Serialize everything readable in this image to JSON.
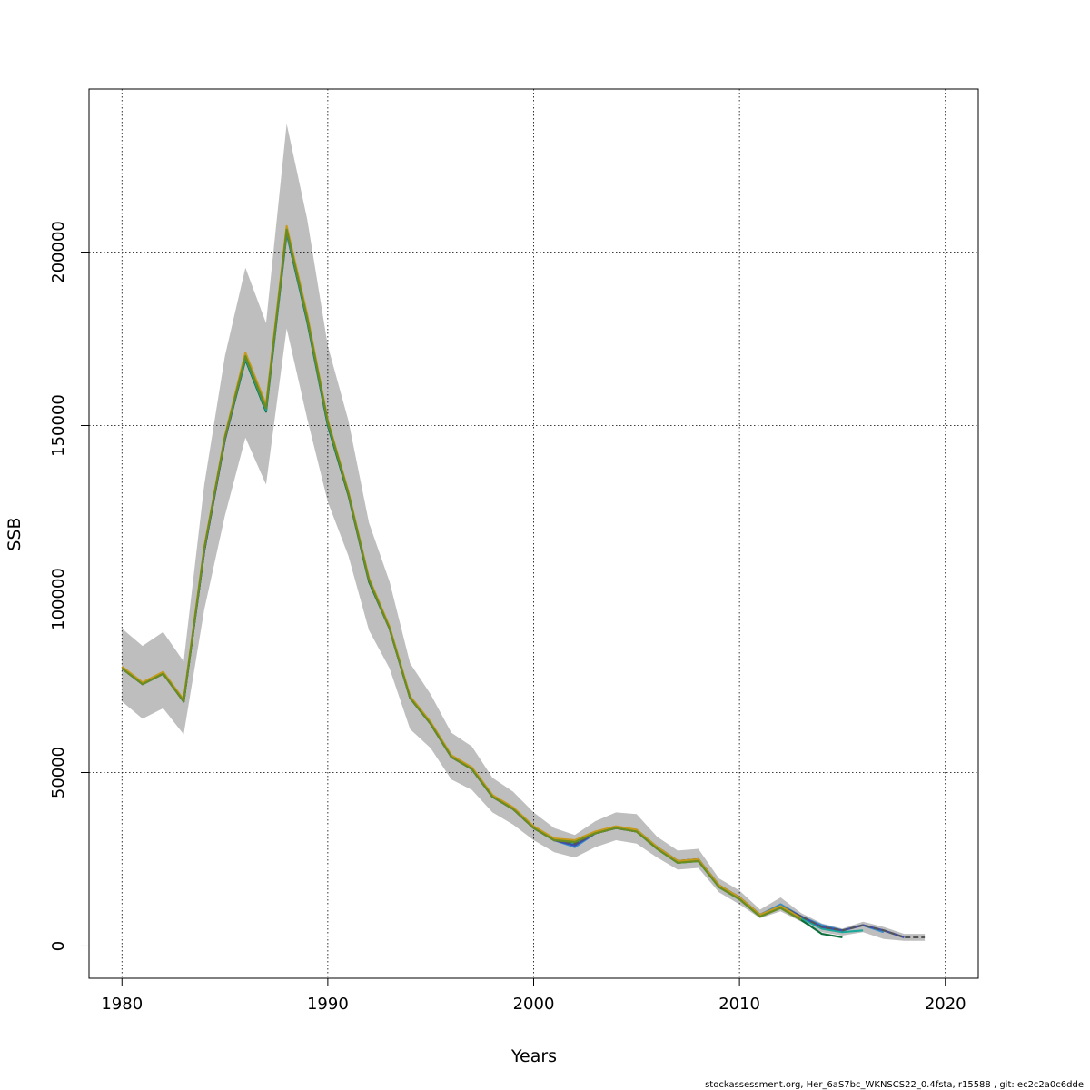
{
  "chart_data": {
    "type": "line",
    "xlabel": "Years",
    "ylabel": "SSB",
    "xlim": [
      1978.4,
      2021.6
    ],
    "ylim": [
      -9300,
      247000
    ],
    "x_ticks": [
      1980,
      1990,
      2000,
      2010,
      2020
    ],
    "x_tick_labels": [
      "1980",
      "1990",
      "2000",
      "2010",
      "2020"
    ],
    "y_ticks": [
      0,
      50000,
      100000,
      150000,
      200000
    ],
    "y_tick_labels": [
      "0",
      "50000",
      "100000",
      "150000",
      "200000"
    ],
    "grid": true,
    "confidence_band": {
      "color": "#bebebe",
      "x": [
        1980,
        1981,
        1982,
        1983,
        1984,
        1985,
        1986,
        1987,
        1988,
        1989,
        1990,
        1991,
        1992,
        1993,
        1994,
        1995,
        1996,
        1997,
        1998,
        1999,
        2000,
        2001,
        2002,
        2003,
        2004,
        2005,
        2006,
        2007,
        2008,
        2009,
        2010,
        2011,
        2012,
        2013,
        2014,
        2015,
        2016,
        2017,
        2018,
        2019
      ],
      "lower": [
        70500,
        65500,
        68500,
        61000,
        97000,
        124000,
        146500,
        133000,
        178000,
        152000,
        128000,
        112500,
        91000,
        80000,
        62500,
        57000,
        48000,
        45000,
        38500,
        35000,
        30500,
        27000,
        25500,
        28500,
        30500,
        29500,
        25500,
        22000,
        22500,
        15500,
        12000,
        8000,
        10000,
        7000,
        4000,
        3000,
        4000,
        2000,
        1500,
        1500
      ],
      "upper": [
        91500,
        86500,
        90500,
        82000,
        133000,
        170000,
        195500,
        179500,
        237000,
        209500,
        173000,
        151500,
        122000,
        105000,
        81500,
        72500,
        61500,
        57500,
        48500,
        44500,
        38500,
        34000,
        32000,
        36000,
        38500,
        38000,
        31500,
        27500,
        28000,
        19500,
        16000,
        10500,
        14000,
        9500,
        6500,
        5000,
        7000,
        5500,
        3500,
        3500
      ]
    },
    "series": [
      {
        "color": "#0b6e3c",
        "x": [
          1980,
          1981,
          1982,
          1983,
          1984,
          1985,
          1986,
          1987,
          1988,
          1989,
          1990,
          1991,
          1992,
          1993,
          1994,
          1995,
          1996,
          1997,
          1998,
          1999,
          2000,
          2001,
          2002,
          2003,
          2004,
          2005,
          2006,
          2007,
          2008,
          2009,
          2010,
          2011,
          2012,
          2013,
          2014,
          2015
        ],
        "values": [
          80000,
          75500,
          78500,
          70500,
          114000,
          146000,
          169000,
          154000,
          205500,
          180000,
          150000,
          130000,
          105000,
          91500,
          71500,
          64000,
          54500,
          51000,
          43000,
          39500,
          34000,
          30500,
          30000,
          32500,
          34000,
          33000,
          28000,
          24000,
          24500,
          17000,
          13500,
          8500,
          11000,
          7500,
          3500,
          2500
        ]
      },
      {
        "color": "#1aa89a",
        "x": [
          1980,
          1981,
          1982,
          1983,
          1984,
          1985,
          1986,
          1987,
          1988,
          1989,
          1990,
          1991,
          1992,
          1993,
          1994,
          1995,
          1996,
          1997,
          1998,
          1999,
          2000,
          2001,
          2002,
          2003,
          2004,
          2005,
          2006,
          2007,
          2008,
          2009,
          2010,
          2011,
          2012,
          2013,
          2014,
          2015,
          2016
        ],
        "values": [
          80000,
          75500,
          78500,
          70500,
          114000,
          146000,
          169500,
          154500,
          206000,
          180500,
          150500,
          130500,
          105500,
          91500,
          71500,
          64000,
          54500,
          51000,
          43000,
          39500,
          34000,
          30500,
          29500,
          32500,
          34000,
          33000,
          28000,
          24000,
          24500,
          17000,
          13500,
          8500,
          11500,
          8000,
          5000,
          4000,
          4500
        ]
      },
      {
        "color": "#3a8ec9",
        "x": [
          1980,
          1981,
          1982,
          1983,
          1984,
          1985,
          1986,
          1987,
          1988,
          1989,
          1990,
          1991,
          1992,
          1993,
          1994,
          1995,
          1996,
          1997,
          1998,
          1999,
          2000,
          2001,
          2002,
          2003,
          2004,
          2005,
          2006,
          2007,
          2008,
          2009,
          2010,
          2011,
          2012,
          2013,
          2014,
          2015,
          2016,
          2017
        ],
        "values": [
          80000,
          75500,
          78500,
          70500,
          114000,
          146000,
          170000,
          155000,
          206000,
          181000,
          151000,
          130500,
          105500,
          91500,
          71500,
          64000,
          54500,
          51000,
          43000,
          39500,
          34000,
          30500,
          28500,
          32500,
          34000,
          33500,
          28500,
          24500,
          25000,
          17500,
          14000,
          9000,
          12000,
          8500,
          6000,
          4500,
          6000,
          4000
        ]
      },
      {
        "color": "#3d4db5",
        "x": [
          1980,
          1981,
          1982,
          1983,
          1984,
          1985,
          1986,
          1987,
          1988,
          1989,
          1990,
          1991,
          1992,
          1993,
          1994,
          1995,
          1996,
          1997,
          1998,
          1999,
          2000,
          2001,
          2002,
          2003,
          2004,
          2005,
          2006,
          2007,
          2008,
          2009,
          2010,
          2011,
          2012,
          2013,
          2014,
          2015,
          2016,
          2017,
          2018
        ],
        "values": [
          80000,
          75500,
          78500,
          70500,
          114000,
          146000,
          170000,
          155000,
          206500,
          181000,
          151000,
          130500,
          105500,
          91500,
          71500,
          64000,
          54500,
          51000,
          43000,
          39500,
          34000,
          30500,
          29000,
          32500,
          34000,
          33000,
          28500,
          24500,
          25000,
          17500,
          14000,
          9000,
          11500,
          8500,
          5500,
          4500,
          6000,
          4500,
          2500
        ]
      },
      {
        "color": "#555555",
        "dashed": true,
        "x": [
          1980,
          1981,
          1982,
          1983,
          1984,
          1985,
          1986,
          1987,
          1988,
          1989,
          1990,
          1991,
          1992,
          1993,
          1994,
          1995,
          1996,
          1997,
          1998,
          1999,
          2000,
          2001,
          2002,
          2003,
          2004,
          2005,
          2006,
          2007,
          2008,
          2009,
          2010,
          2011,
          2012,
          2013,
          2014,
          2015,
          2016,
          2017,
          2018,
          2019
        ],
        "values": [
          80000,
          75500,
          78500,
          70500,
          114000,
          146000,
          170000,
          155000,
          206500,
          181000,
          151000,
          130500,
          105500,
          91500,
          71500,
          64000,
          54500,
          51000,
          43000,
          39500,
          34000,
          30500,
          29500,
          32500,
          34000,
          33000,
          28500,
          24500,
          25000,
          17500,
          14000,
          9000,
          11500,
          8500,
          5500,
          4500,
          6000,
          4500,
          2500,
          2500
        ]
      },
      {
        "color": "#c79a1e",
        "x": [
          1980,
          1981,
          1982,
          1983,
          1984,
          1985,
          1986,
          1987,
          1988,
          1989,
          1990,
          1991,
          1992,
          1993,
          1994,
          1995,
          1996,
          1997,
          1998,
          1999,
          2000,
          2001,
          2002,
          2003,
          2004,
          2005,
          2006,
          2007,
          2008,
          2009,
          2010,
          2011,
          2012,
          2013
        ],
        "values": [
          80500,
          76000,
          79000,
          71000,
          115000,
          147000,
          171000,
          156000,
          207500,
          182000,
          151500,
          131000,
          106000,
          92000,
          72000,
          64500,
          55000,
          51500,
          43500,
          40000,
          34500,
          31000,
          30500,
          33000,
          34500,
          33500,
          28500,
          24500,
          25000,
          17500,
          14000,
          9000,
          11500,
          8000
        ]
      },
      {
        "color": "#6b8c1f",
        "x": [
          1980,
          1981,
          1982,
          1983,
          1984,
          1985,
          1986,
          1987,
          1988,
          1989,
          1990,
          1991,
          1992,
          1993,
          1994,
          1995,
          1996,
          1997,
          1998,
          1999,
          2000,
          2001,
          2002,
          2003,
          2004,
          2005,
          2006,
          2007,
          2008,
          2009,
          2010,
          2011,
          2012,
          2013
        ],
        "values": [
          80000,
          75500,
          78500,
          70500,
          114500,
          146500,
          170000,
          155000,
          206500,
          181000,
          151000,
          130500,
          105500,
          91500,
          71500,
          64000,
          54500,
          51000,
          43000,
          39500,
          34000,
          30500,
          30000,
          32500,
          34000,
          33000,
          28000,
          24000,
          24500,
          17000,
          13500,
          8500,
          11000,
          7500
        ]
      }
    ]
  },
  "footnote": "stockassessment.org, Her_6aS7bc_WKNSCS22_0.4fsta, r15588 , git: ec2c2a0c6dde"
}
